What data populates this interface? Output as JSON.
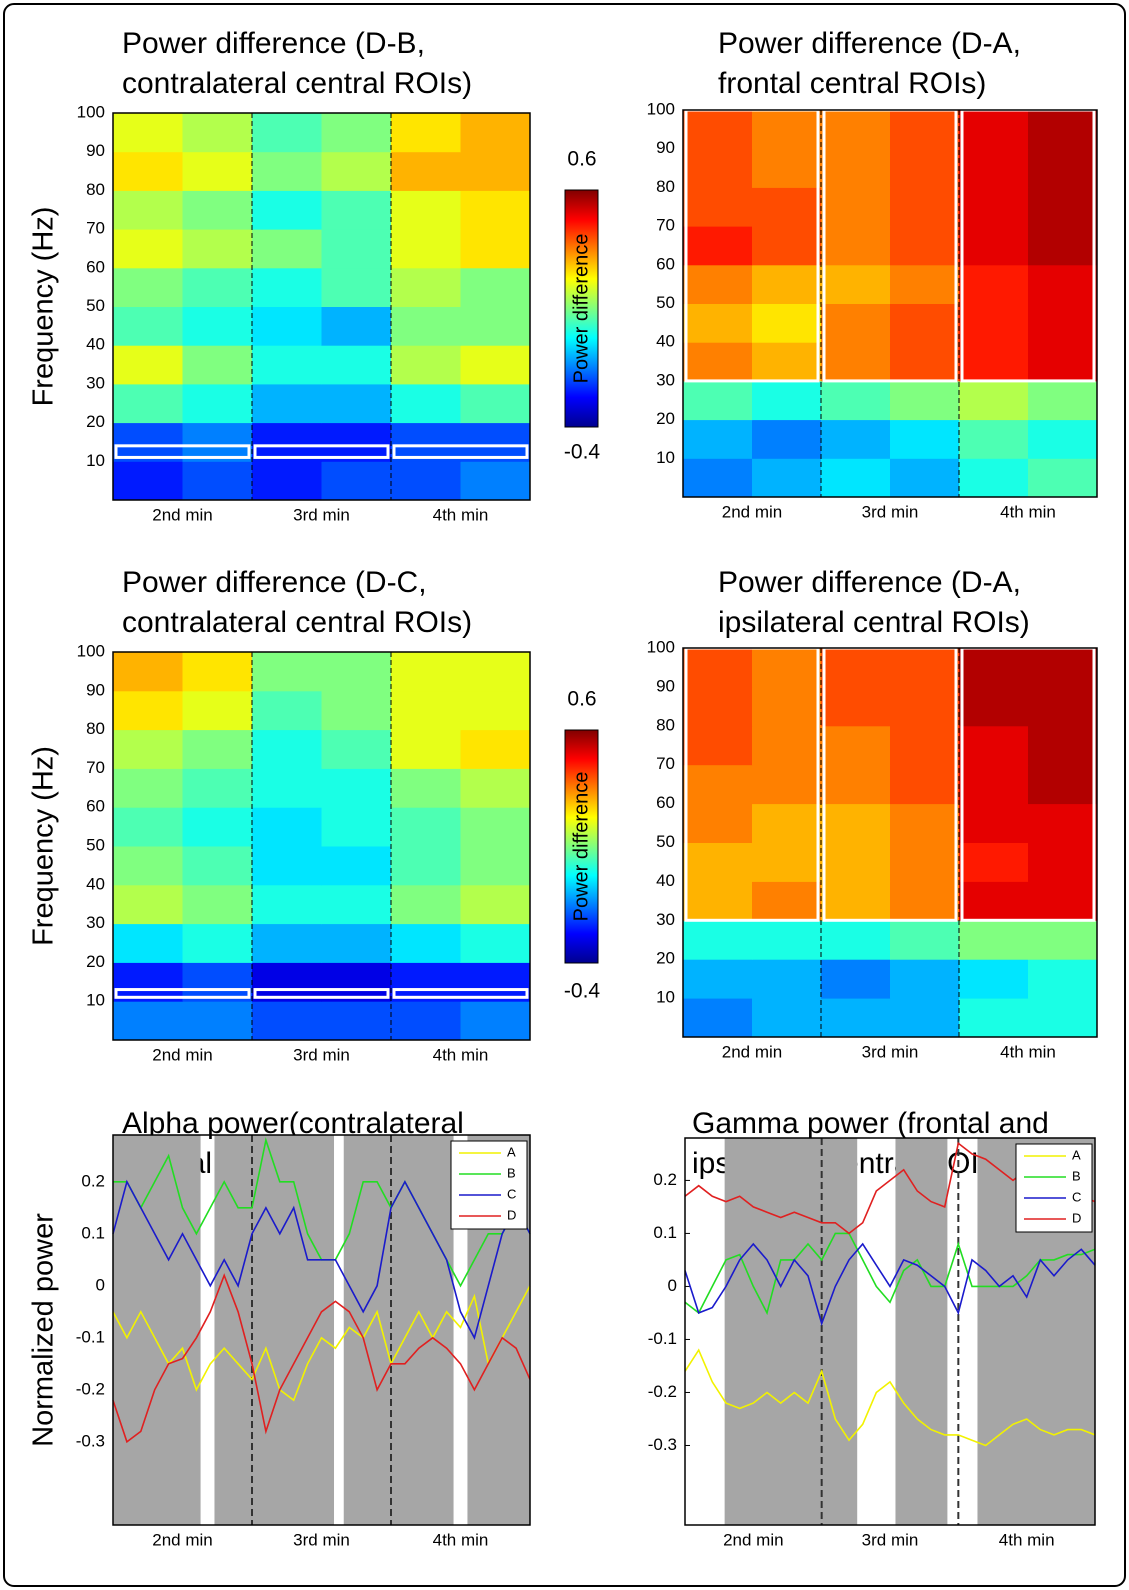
{
  "chart_data": [
    {
      "type": "heatmap",
      "title": [
        "Power difference (D-B,",
        "contralateral central ROIs)"
      ],
      "y_label": "Frequency (Hz)",
      "categories": [
        "2nd min",
        "3rd min",
        "4th min"
      ],
      "xlim": [
        0,
        3
      ],
      "ylim": [
        0,
        100
      ],
      "yticks": [
        10,
        20,
        30,
        40,
        50,
        60,
        70,
        80,
        90,
        100
      ],
      "xbins": [
        0,
        0.5,
        1,
        1.5,
        2,
        2.5,
        3
      ],
      "ybins": [
        0,
        10,
        20,
        30,
        40,
        50,
        60,
        70,
        80,
        90,
        100
      ],
      "values": [
        [
          -0.25,
          -0.2,
          -0.25,
          -0.2,
          -0.2,
          -0.15
        ],
        [
          -0.2,
          -0.15,
          -0.25,
          -0.25,
          -0.2,
          -0.2
        ],
        [
          0.05,
          0,
          -0.1,
          -0.1,
          0,
          0.05
        ],
        [
          0.2,
          0.1,
          0,
          0,
          0.15,
          0.2
        ],
        [
          0.05,
          0,
          -0.05,
          -0.1,
          0.1,
          0.1
        ],
        [
          0.1,
          0.05,
          0,
          0.05,
          0.15,
          0.1
        ],
        [
          0.2,
          0.15,
          0.1,
          0.05,
          0.2,
          0.25
        ],
        [
          0.15,
          0.1,
          0,
          0.05,
          0.2,
          0.25
        ],
        [
          0.25,
          0.2,
          0.1,
          0.15,
          0.3,
          0.3
        ],
        [
          0.2,
          0.15,
          0.05,
          0.1,
          0.25,
          0.3
        ]
      ],
      "zlim": [
        -0.4,
        0.6
      ],
      "colorbar_label": "Power difference",
      "roi_band": [
        11,
        14
      ]
    },
    {
      "type": "heatmap",
      "title": [
        "Power difference (D-A,",
        "frontal central ROIs)"
      ],
      "categories": [
        "2nd min",
        "3rd min",
        "4th min"
      ],
      "xlim": [
        0,
        3
      ],
      "ylim": [
        0,
        100
      ],
      "yticks": [
        10,
        20,
        30,
        40,
        50,
        60,
        70,
        80,
        90,
        100
      ],
      "xbins": [
        0,
        0.5,
        1,
        1.5,
        2,
        2.5,
        3
      ],
      "ybins": [
        0,
        10,
        20,
        30,
        40,
        50,
        60,
        70,
        80,
        90,
        100
      ],
      "values": [
        [
          -0.15,
          -0.1,
          -0.05,
          -0.1,
          0,
          0.05
        ],
        [
          -0.1,
          -0.15,
          -0.1,
          -0.05,
          0.05,
          0
        ],
        [
          0.05,
          0,
          0.05,
          0.1,
          0.15,
          0.1
        ],
        [
          0.35,
          0.3,
          0.35,
          0.4,
          0.45,
          0.5
        ],
        [
          0.3,
          0.25,
          0.35,
          0.4,
          0.45,
          0.5
        ],
        [
          0.35,
          0.3,
          0.3,
          0.35,
          0.45,
          0.5
        ],
        [
          0.45,
          0.4,
          0.35,
          0.4,
          0.5,
          0.55
        ],
        [
          0.4,
          0.4,
          0.35,
          0.4,
          0.5,
          0.55
        ],
        [
          0.4,
          0.35,
          0.35,
          0.4,
          0.5,
          0.55
        ],
        [
          0.4,
          0.35,
          0.35,
          0.4,
          0.5,
          0.55
        ]
      ],
      "zlim": [
        -0.4,
        0.6
      ],
      "roi_band": [
        30,
        100
      ]
    },
    {
      "type": "heatmap",
      "title": [
        "Power difference (D-C,",
        "contralateral central ROIs)"
      ],
      "y_label": "Frequency (Hz)",
      "categories": [
        "2nd min",
        "3rd min",
        "4th min"
      ],
      "xlim": [
        0,
        3
      ],
      "ylim": [
        0,
        100
      ],
      "yticks": [
        10,
        20,
        30,
        40,
        50,
        60,
        70,
        80,
        90,
        100
      ],
      "xbins": [
        0,
        0.5,
        1,
        1.5,
        2,
        2.5,
        3
      ],
      "ybins": [
        0,
        10,
        20,
        30,
        40,
        50,
        60,
        70,
        80,
        90,
        100
      ],
      "values": [
        [
          -0.15,
          -0.15,
          -0.2,
          -0.2,
          -0.2,
          -0.15
        ],
        [
          -0.25,
          -0.2,
          -0.3,
          -0.3,
          -0.25,
          -0.25
        ],
        [
          -0.05,
          0,
          -0.1,
          -0.1,
          -0.05,
          0
        ],
        [
          0.15,
          0.1,
          0,
          0,
          0.1,
          0.15
        ],
        [
          0.1,
          0.05,
          -0.05,
          -0.05,
          0.05,
          0.1
        ],
        [
          0.05,
          0,
          -0.05,
          0,
          0.05,
          0.1
        ],
        [
          0.1,
          0.05,
          0,
          0,
          0.1,
          0.15
        ],
        [
          0.15,
          0.1,
          0,
          0.05,
          0.2,
          0.25
        ],
        [
          0.25,
          0.2,
          0.05,
          0.1,
          0.2,
          0.2
        ],
        [
          0.3,
          0.25,
          0.1,
          0.1,
          0.2,
          0.2
        ]
      ],
      "zlim": [
        -0.4,
        0.6
      ],
      "colorbar_label": "Power difference",
      "roi_band": [
        11,
        13
      ]
    },
    {
      "type": "heatmap",
      "title": [
        "Power difference (D-A,",
        "ipsilateral central ROIs)"
      ],
      "categories": [
        "2nd min",
        "3rd min",
        "4th min"
      ],
      "xlim": [
        0,
        3
      ],
      "ylim": [
        0,
        100
      ],
      "yticks": [
        10,
        20,
        30,
        40,
        50,
        60,
        70,
        80,
        90,
        100
      ],
      "xbins": [
        0,
        0.5,
        1,
        1.5,
        2,
        2.5,
        3
      ],
      "ybins": [
        0,
        10,
        20,
        30,
        40,
        50,
        60,
        70,
        80,
        90,
        100
      ],
      "values": [
        [
          -0.15,
          -0.1,
          -0.1,
          -0.1,
          0,
          0
        ],
        [
          -0.1,
          -0.1,
          -0.15,
          -0.1,
          -0.05,
          0
        ],
        [
          0,
          0,
          0,
          0.05,
          0.1,
          0.1
        ],
        [
          0.3,
          0.35,
          0.3,
          0.35,
          0.5,
          0.5
        ],
        [
          0.3,
          0.3,
          0.3,
          0.35,
          0.45,
          0.5
        ],
        [
          0.35,
          0.3,
          0.3,
          0.35,
          0.5,
          0.5
        ],
        [
          0.35,
          0.35,
          0.35,
          0.4,
          0.5,
          0.55
        ],
        [
          0.4,
          0.35,
          0.35,
          0.4,
          0.5,
          0.55
        ],
        [
          0.4,
          0.35,
          0.4,
          0.4,
          0.55,
          0.55
        ],
        [
          0.4,
          0.35,
          0.4,
          0.4,
          0.55,
          0.55
        ]
      ],
      "zlim": [
        -0.4,
        0.6
      ],
      "roi_band": [
        30,
        100
      ]
    },
    {
      "type": "line",
      "title": [
        "Alpha power(contralateral",
        "central ROIs)"
      ],
      "y_label": "Normalized power",
      "categories": [
        "2nd min",
        "3rd min",
        "4th min"
      ],
      "xlim": [
        0,
        3
      ],
      "ylim": [
        -0.46,
        0.29
      ],
      "yticks": [
        -0.3,
        -0.2,
        -0.1,
        0,
        0.1,
        0.2
      ],
      "shaded": [
        [
          0,
          0.63
        ],
        [
          0.73,
          1.59
        ],
        [
          1.66,
          2.45
        ],
        [
          2.55,
          3
        ]
      ],
      "legend": "upper right",
      "x": [
        0,
        0.1,
        0.2,
        0.3,
        0.4,
        0.5,
        0.6,
        0.7,
        0.8,
        0.9,
        1,
        1.1,
        1.2,
        1.3,
        1.4,
        1.5,
        1.6,
        1.7,
        1.8,
        1.9,
        2,
        2.1,
        2.2,
        2.3,
        2.4,
        2.5,
        2.6,
        2.7,
        2.8,
        2.9,
        3
      ],
      "series": [
        {
          "name": "A",
          "color": "#f2f200",
          "values": [
            -0.05,
            -0.1,
            -0.05,
            -0.1,
            -0.15,
            -0.12,
            -0.2,
            -0.15,
            -0.12,
            -0.15,
            -0.18,
            -0.12,
            -0.2,
            -0.22,
            -0.15,
            -0.1,
            -0.12,
            -0.08,
            -0.1,
            -0.05,
            -0.15,
            -0.1,
            -0.05,
            -0.1,
            -0.05,
            -0.08,
            -0.02,
            -0.15,
            -0.1,
            -0.05,
            0
          ]
        },
        {
          "name": "B",
          "color": "#22dd22",
          "values": [
            0.2,
            0.2,
            0.15,
            0.2,
            0.25,
            0.15,
            0.1,
            0.15,
            0.2,
            0.15,
            0.15,
            0.28,
            0.2,
            0.2,
            0.1,
            0.05,
            0.05,
            0.1,
            0.2,
            0.2,
            0.15,
            0.2,
            0.15,
            0.1,
            0.05,
            0,
            0.05,
            0.1,
            0.1,
            0.15,
            0.1
          ]
        },
        {
          "name": "C",
          "color": "#1a1acc",
          "values": [
            0.1,
            0.2,
            0.15,
            0.1,
            0.05,
            0.1,
            0.05,
            0,
            0.05,
            0,
            0.1,
            0.15,
            0.1,
            0.15,
            0.05,
            0.05,
            0.05,
            0,
            -0.05,
            0,
            0.15,
            0.2,
            0.15,
            0.1,
            0.05,
            -0.05,
            -0.1,
            0,
            0.1,
            0.15,
            0.1
          ]
        },
        {
          "name": "D",
          "color": "#e02020",
          "values": [
            -0.22,
            -0.3,
            -0.28,
            -0.2,
            -0.15,
            -0.14,
            -0.1,
            -0.05,
            0.02,
            -0.05,
            -0.15,
            -0.28,
            -0.2,
            -0.15,
            -0.1,
            -0.05,
            -0.03,
            -0.05,
            -0.1,
            -0.2,
            -0.15,
            -0.15,
            -0.12,
            -0.1,
            -0.12,
            -0.15,
            -0.2,
            -0.15,
            -0.1,
            -0.12,
            -0.18
          ]
        }
      ]
    },
    {
      "type": "line",
      "title": [
        "Gamma power (frontal and",
        "ipsilateral central ROIs)"
      ],
      "categories": [
        "2nd min",
        "3rd min",
        "4th min"
      ],
      "xlim": [
        0,
        3
      ],
      "ylim": [
        -0.45,
        0.28
      ],
      "yticks": [
        -0.3,
        -0.2,
        -0.1,
        0,
        0.1,
        0.2
      ],
      "shaded": [
        [
          0.29,
          1.26
        ],
        [
          1.54,
          1.92
        ],
        [
          2.14,
          3
        ]
      ],
      "legend": "upper right",
      "x": [
        0,
        0.1,
        0.2,
        0.3,
        0.4,
        0.5,
        0.6,
        0.7,
        0.8,
        0.9,
        1,
        1.1,
        1.2,
        1.3,
        1.4,
        1.5,
        1.6,
        1.7,
        1.8,
        1.9,
        2,
        2.1,
        2.2,
        2.3,
        2.4,
        2.5,
        2.6,
        2.7,
        2.8,
        2.9,
        3
      ],
      "series": [
        {
          "name": "A",
          "color": "#f2f200",
          "values": [
            -0.16,
            -0.12,
            -0.18,
            -0.22,
            -0.23,
            -0.22,
            -0.2,
            -0.22,
            -0.2,
            -0.22,
            -0.16,
            -0.25,
            -0.29,
            -0.26,
            -0.2,
            -0.18,
            -0.22,
            -0.25,
            -0.27,
            -0.28,
            -0.28,
            -0.29,
            -0.3,
            -0.28,
            -0.26,
            -0.25,
            -0.27,
            -0.28,
            -0.27,
            -0.27,
            -0.28
          ]
        },
        {
          "name": "B",
          "color": "#22dd22",
          "values": [
            -0.03,
            -0.05,
            0,
            0.05,
            0.06,
            0,
            -0.05,
            0.05,
            0.05,
            0.08,
            0.05,
            0.1,
            0.1,
            0.05,
            0,
            -0.03,
            0.03,
            0.05,
            0,
            0,
            0.08,
            0,
            0,
            0,
            0,
            0.02,
            0.05,
            0.05,
            0.06,
            0.06,
            0.07
          ]
        },
        {
          "name": "C",
          "color": "#1a1acc",
          "values": [
            0.03,
            -0.05,
            -0.04,
            0,
            0.05,
            0.08,
            0.05,
            0,
            0.05,
            0.02,
            -0.07,
            0,
            0.05,
            0.08,
            0.04,
            0,
            0.05,
            0.04,
            0.02,
            0,
            -0.05,
            0.05,
            0.03,
            0,
            0.02,
            -0.02,
            0.05,
            0.02,
            0.05,
            0.07,
            0.04
          ]
        },
        {
          "name": "D",
          "color": "#e02020",
          "values": [
            0.17,
            0.19,
            0.17,
            0.16,
            0.17,
            0.15,
            0.14,
            0.13,
            0.14,
            0.13,
            0.12,
            0.12,
            0.1,
            0.12,
            0.18,
            0.2,
            0.22,
            0.18,
            0.16,
            0.15,
            0.27,
            0.25,
            0.24,
            0.22,
            0.2,
            0.22,
            0.2,
            0.17,
            0.19,
            0.17,
            0.16
          ]
        }
      ]
    }
  ]
}
